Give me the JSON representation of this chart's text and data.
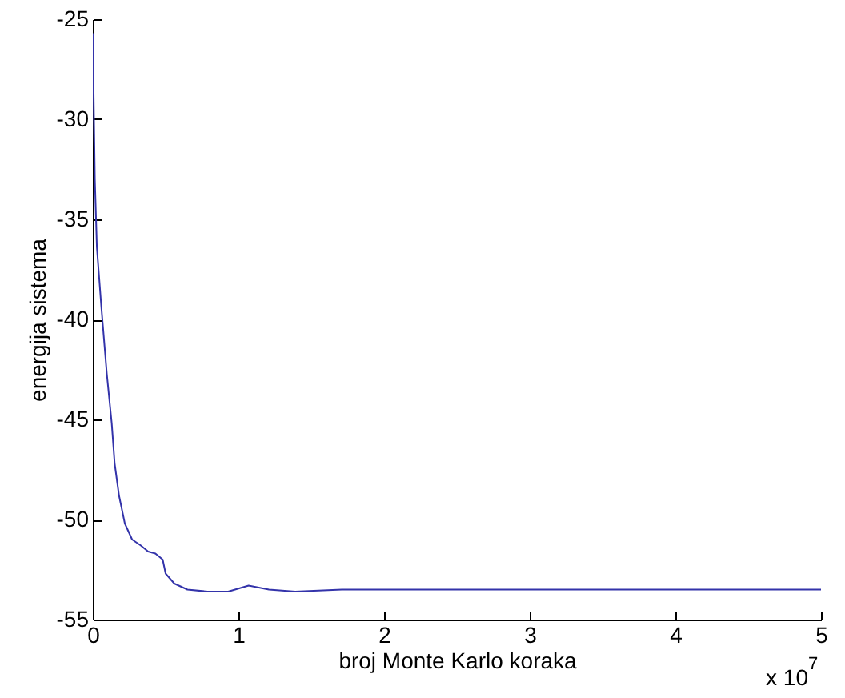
{
  "chart_data": {
    "type": "line",
    "xlabel": "broj Monte Karlo koraka",
    "ylabel": "energija sistema",
    "annotations": [
      "x 10$^{7}$"
    ],
    "x": [
      0,
      0.007,
      0.014,
      0.028,
      0.06,
      0.096,
      0.13,
      0.15,
      0.18,
      0.22,
      0.27,
      0.33,
      0.38,
      0.43,
      0.48,
      0.5,
      0.56,
      0.65,
      0.79,
      0.93,
      1.07,
      1.21,
      1.39,
      1.71,
      2.5,
      3.5,
      4.5,
      5
    ],
    "series": [
      {
        "color": "#3333aa",
        "values": [
          -25.7,
          -29.5,
          -33,
          -36.4,
          -39.5,
          -42.7,
          -45.2,
          -47.2,
          -48.8,
          -50.2,
          -51,
          -51.3,
          -51.6,
          -51.7,
          -52,
          -52.7,
          -53.2,
          -53.5,
          -53.6,
          -53.6,
          -53.3,
          -53.5,
          -53.6,
          -53.5,
          -53.5,
          -53.5,
          -53.5,
          -53.5
        ]
      }
    ],
    "xlim": [
      0,
      5
    ],
    "xticks": [
      0,
      1,
      2,
      3,
      4,
      5
    ],
    "ylim": [
      -55,
      -25
    ],
    "yticks": [
      -55,
      -50,
      -45,
      -40,
      -35,
      -30,
      -25
    ],
    "grid": false
  }
}
